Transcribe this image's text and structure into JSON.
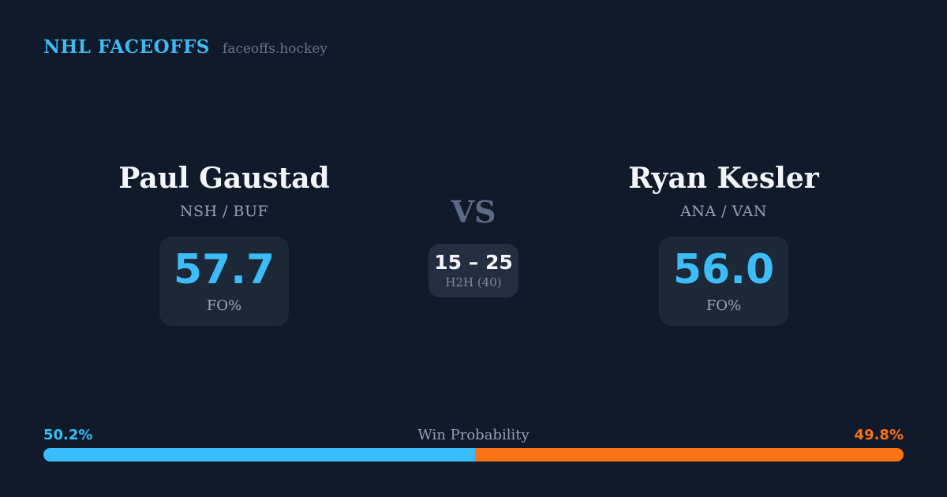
{
  "brand": {
    "title": "NHL FACEOFFS",
    "domain": "faceoffs.hockey"
  },
  "players": {
    "left": {
      "name": "Paul Gaustad",
      "teams": "NSH / BUF",
      "fo_value": "57.7",
      "fo_label": "FO%"
    },
    "right": {
      "name": "Ryan Kesler",
      "teams": "ANA / VAN",
      "fo_value": "56.0",
      "fo_label": "FO%"
    }
  },
  "matchup": {
    "vs_label": "VS",
    "h2h_score": "15 – 25",
    "h2h_label": "H2H (40)"
  },
  "win_probability": {
    "label": "Win Probability",
    "left_pct_text": "50.2%",
    "right_pct_text": "49.8%",
    "left_value": 50.2,
    "right_value": 49.8,
    "left_color": "#38bdf8",
    "right_color": "#f97316"
  },
  "colors": {
    "background": "#101a2b",
    "card": "#1c2737",
    "h2h_card": "#232e40",
    "accent_blue": "#3cbdf8",
    "accent_orange": "#f97316",
    "title_text": "#f2f5f9",
    "muted_text": "#93a1b8"
  }
}
